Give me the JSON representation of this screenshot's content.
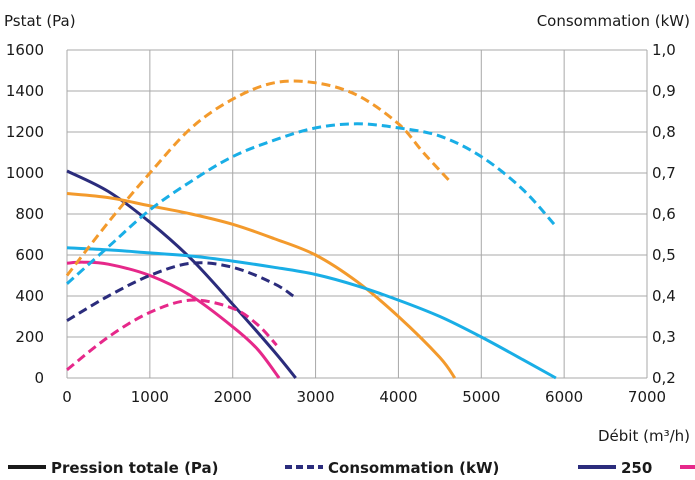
{
  "chart_data": {
    "type": "line",
    "xlabel": "Débit (m³/h)",
    "ylabel_left": "Pstat (Pa)",
    "ylabel_right": "Consommation (kW)",
    "xlim": [
      0,
      7000
    ],
    "ylim_left": [
      0,
      1600
    ],
    "ylim_right": [
      0.2,
      1.0
    ],
    "grid": true,
    "x_ticks": [
      "0",
      "1000",
      "2000",
      "3000",
      "4000",
      "5000",
      "6000",
      "7000"
    ],
    "y_left_ticks": [
      "0",
      "200",
      "400",
      "600",
      "800",
      "1000",
      "1200",
      "1400",
      "1600"
    ],
    "y_right_ticks": [
      "0,2",
      "0,3",
      "0,4",
      "0,5",
      "0,6",
      "0,7",
      "0,8",
      "0,9",
      "1,0"
    ],
    "legend": {
      "placement": "bottom",
      "items": [
        {
          "label": "Pression totale (Pa)",
          "style": "solid",
          "color": "#1a1a1a"
        },
        {
          "label": "Consommation (kW)",
          "style": "dashed",
          "color": "#2b2c7c"
        },
        {
          "label": "250",
          "style": "solid",
          "color": "#2b2c7c"
        },
        {
          "label": "",
          "style": "solid",
          "color": "#e6288a"
        }
      ]
    },
    "series": [
      {
        "color": "#2b2c7c",
        "axis": "left",
        "style": "solid",
        "x": [
          0,
          500,
          1000,
          1500,
          2000,
          2500,
          2760
        ],
        "values": [
          1010,
          910,
          760,
          580,
          360,
          130,
          0
        ]
      },
      {
        "color": "#e6288a",
        "axis": "left",
        "style": "solid",
        "x": [
          0,
          200,
          500,
          1000,
          1500,
          2000,
          2300,
          2560
        ],
        "values": [
          560,
          565,
          555,
          500,
          400,
          250,
          140,
          0
        ]
      },
      {
        "color": "#f39a2c",
        "axis": "left",
        "style": "solid",
        "x": [
          0,
          500,
          1000,
          1500,
          2000,
          2500,
          3000,
          3500,
          4000,
          4500,
          4680
        ],
        "values": [
          900,
          880,
          840,
          800,
          750,
          680,
          600,
          470,
          300,
          100,
          0
        ]
      },
      {
        "color": "#19aee6",
        "axis": "left",
        "style": "solid",
        "x": [
          0,
          500,
          1000,
          1500,
          2000,
          2500,
          3000,
          3500,
          4000,
          4500,
          5000,
          5500,
          5900
        ],
        "values": [
          635,
          625,
          610,
          595,
          570,
          540,
          505,
          450,
          380,
          300,
          200,
          90,
          0
        ]
      },
      {
        "color": "#2b2c7c",
        "axis": "right",
        "style": "dashed",
        "x": [
          0,
          500,
          1000,
          1500,
          2000,
          2500,
          2730
        ],
        "values": [
          0.34,
          0.4,
          0.45,
          0.48,
          0.47,
          0.43,
          0.4
        ]
      },
      {
        "color": "#e6288a",
        "axis": "right",
        "style": "dashed",
        "x": [
          0,
          500,
          1000,
          1500,
          2000,
          2300,
          2530
        ],
        "values": [
          0.22,
          0.3,
          0.36,
          0.39,
          0.37,
          0.33,
          0.28
        ]
      },
      {
        "color": "#f39a2c",
        "axis": "right",
        "style": "dashed",
        "x": [
          0,
          500,
          1000,
          1500,
          2000,
          2500,
          3000,
          3500,
          4000,
          4300,
          4620
        ],
        "values": [
          0.45,
          0.58,
          0.7,
          0.81,
          0.88,
          0.92,
          0.92,
          0.89,
          0.82,
          0.75,
          0.68
        ]
      },
      {
        "color": "#19aee6",
        "axis": "right",
        "style": "dashed",
        "x": [
          0,
          500,
          1000,
          1500,
          2000,
          2500,
          3000,
          3500,
          4000,
          4500,
          5000,
          5500,
          5900
        ],
        "values": [
          0.43,
          0.52,
          0.61,
          0.68,
          0.74,
          0.78,
          0.81,
          0.82,
          0.81,
          0.79,
          0.74,
          0.66,
          0.57
        ]
      }
    ]
  }
}
